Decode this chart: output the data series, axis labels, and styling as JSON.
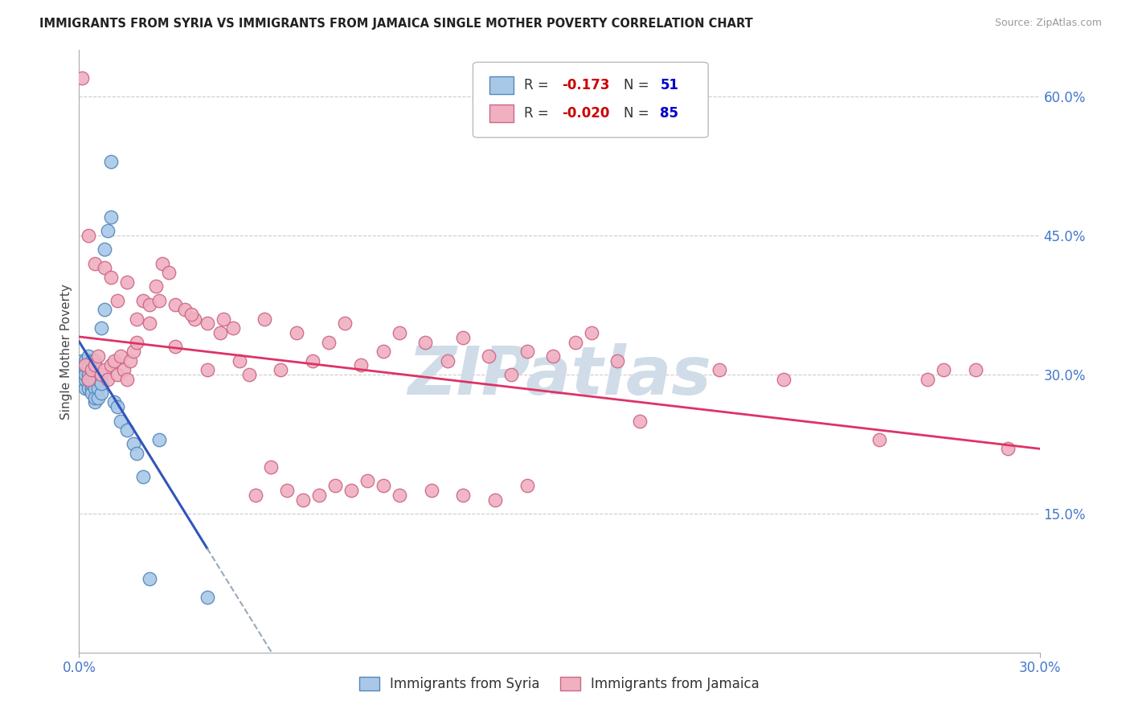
{
  "title": "IMMIGRANTS FROM SYRIA VS IMMIGRANTS FROM JAMAICA SINGLE MOTHER POVERTY CORRELATION CHART",
  "source": "Source: ZipAtlas.com",
  "ylabel": "Single Mother Poverty",
  "xlim": [
    0.0,
    0.3
  ],
  "ylim": [
    0.0,
    0.65
  ],
  "ytick_positions": [
    0.15,
    0.3,
    0.45,
    0.6
  ],
  "ytick_labels": [
    "15.0%",
    "30.0%",
    "45.0%",
    "60.0%"
  ],
  "xtick_positions": [
    0.0,
    0.3
  ],
  "xtick_labels": [
    "0.0%",
    "30.0%"
  ],
  "grid_color": "#cccccc",
  "background_color": "#ffffff",
  "syria_color": "#a8c8e8",
  "syria_edge_color": "#5588bb",
  "jamaica_color": "#f0b0c0",
  "jamaica_edge_color": "#cc6688",
  "syria_line_color": "#3355bb",
  "jamaica_line_color": "#dd3366",
  "dashed_line_color": "#99aabb",
  "watermark_color": "#d0dce8",
  "tick_color": "#4477cc",
  "syria_scatter_x": [
    0.001,
    0.001,
    0.001,
    0.002,
    0.002,
    0.002,
    0.002,
    0.002,
    0.002,
    0.003,
    0.003,
    0.003,
    0.003,
    0.003,
    0.003,
    0.003,
    0.003,
    0.004,
    0.004,
    0.004,
    0.004,
    0.004,
    0.004,
    0.004,
    0.005,
    0.005,
    0.005,
    0.005,
    0.005,
    0.005,
    0.006,
    0.006,
    0.006,
    0.007,
    0.007,
    0.007,
    0.008,
    0.008,
    0.009,
    0.01,
    0.01,
    0.011,
    0.012,
    0.013,
    0.015,
    0.017,
    0.018,
    0.02,
    0.022,
    0.025,
    0.04
  ],
  "syria_scatter_y": [
    0.295,
    0.305,
    0.315,
    0.285,
    0.295,
    0.305,
    0.315,
    0.3,
    0.31,
    0.285,
    0.295,
    0.305,
    0.315,
    0.295,
    0.3,
    0.31,
    0.32,
    0.285,
    0.295,
    0.305,
    0.315,
    0.28,
    0.29,
    0.3,
    0.285,
    0.295,
    0.305,
    0.315,
    0.27,
    0.275,
    0.275,
    0.285,
    0.295,
    0.28,
    0.29,
    0.35,
    0.37,
    0.435,
    0.455,
    0.53,
    0.47,
    0.27,
    0.265,
    0.25,
    0.24,
    0.225,
    0.215,
    0.19,
    0.08,
    0.23,
    0.06
  ],
  "jamaica_scatter_x": [
    0.001,
    0.002,
    0.003,
    0.004,
    0.005,
    0.006,
    0.007,
    0.008,
    0.009,
    0.01,
    0.011,
    0.012,
    0.013,
    0.014,
    0.015,
    0.016,
    0.017,
    0.018,
    0.02,
    0.022,
    0.024,
    0.026,
    0.028,
    0.03,
    0.033,
    0.036,
    0.04,
    0.044,
    0.048,
    0.053,
    0.058,
    0.063,
    0.068,
    0.073,
    0.078,
    0.083,
    0.088,
    0.095,
    0.1,
    0.108,
    0.115,
    0.12,
    0.128,
    0.135,
    0.14,
    0.148,
    0.155,
    0.16,
    0.168,
    0.175,
    0.003,
    0.005,
    0.008,
    0.01,
    0.012,
    0.015,
    0.018,
    0.022,
    0.025,
    0.03,
    0.035,
    0.04,
    0.045,
    0.05,
    0.055,
    0.06,
    0.065,
    0.07,
    0.075,
    0.08,
    0.085,
    0.09,
    0.095,
    0.1,
    0.11,
    0.12,
    0.13,
    0.14,
    0.2,
    0.22,
    0.25,
    0.265,
    0.27,
    0.28,
    0.29
  ],
  "jamaica_scatter_y": [
    0.62,
    0.31,
    0.295,
    0.305,
    0.31,
    0.32,
    0.3,
    0.305,
    0.295,
    0.31,
    0.315,
    0.3,
    0.32,
    0.305,
    0.295,
    0.315,
    0.325,
    0.335,
    0.38,
    0.355,
    0.395,
    0.42,
    0.41,
    0.375,
    0.37,
    0.36,
    0.355,
    0.345,
    0.35,
    0.3,
    0.36,
    0.305,
    0.345,
    0.315,
    0.335,
    0.355,
    0.31,
    0.325,
    0.345,
    0.335,
    0.315,
    0.34,
    0.32,
    0.3,
    0.325,
    0.32,
    0.335,
    0.345,
    0.315,
    0.25,
    0.45,
    0.42,
    0.415,
    0.405,
    0.38,
    0.4,
    0.36,
    0.375,
    0.38,
    0.33,
    0.365,
    0.305,
    0.36,
    0.315,
    0.17,
    0.2,
    0.175,
    0.165,
    0.17,
    0.18,
    0.175,
    0.185,
    0.18,
    0.17,
    0.175,
    0.17,
    0.165,
    0.18,
    0.305,
    0.295,
    0.23,
    0.295,
    0.305,
    0.305,
    0.22
  ]
}
